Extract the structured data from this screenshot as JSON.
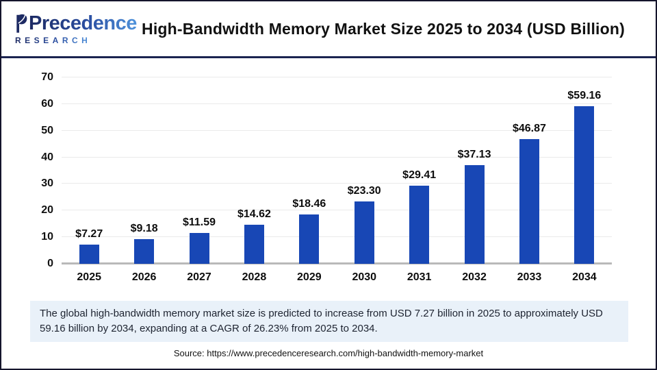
{
  "header": {
    "logo": {
      "brand_word": "Precedence",
      "brand_sub": "RESEARCH"
    },
    "title": "High-Bandwidth Memory Market Size 2025 to 2034 (USD Billion)"
  },
  "chart_data": {
    "type": "bar",
    "title": "High-Bandwidth Memory Market Size 2025 to 2034 (USD Billion)",
    "categories": [
      "2025",
      "2026",
      "2027",
      "2028",
      "2029",
      "2030",
      "2031",
      "2032",
      "2033",
      "2034"
    ],
    "values": [
      7.27,
      9.18,
      11.59,
      14.62,
      18.46,
      23.3,
      29.41,
      37.13,
      46.87,
      59.16
    ],
    "value_labels": [
      "$7.27",
      "$9.18",
      "$11.59",
      "$14.62",
      "$18.46",
      "$23.30",
      "$29.41",
      "$37.13",
      "$46.87",
      "$59.16"
    ],
    "xlabel": "",
    "ylabel": "",
    "ylim": [
      0,
      70
    ],
    "y_ticks": [
      0,
      10,
      20,
      30,
      40,
      50,
      60,
      70
    ],
    "grid": true,
    "legend": false,
    "bar_color": "#1847b5"
  },
  "description": "The global high-bandwidth memory market size is predicted to increase from USD 7.27 billion in 2025 to approximately USD 59.16 billion by 2034, expanding at a CAGR of 26.23% from 2025 to 2034.",
  "source": "Source: https://www.precedenceresearch.com/high-bandwidth-memory-market",
  "colors": {
    "bar": "#1847b5",
    "header_separator": "#1b2350",
    "outer_border": "#15152c",
    "description_bg": "#e9f1f9",
    "gridline": "#eaeaea",
    "baseline": "#b9b9b9",
    "logo_navy": "#1d2a63",
    "logo_blue": "#4f93dc"
  }
}
